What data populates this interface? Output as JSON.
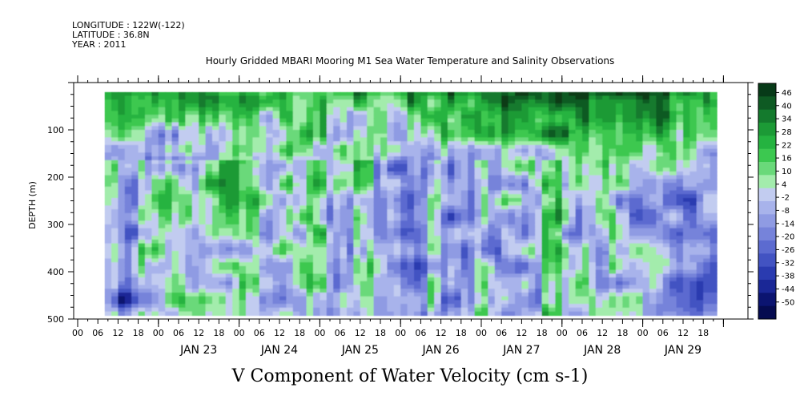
{
  "header": {
    "longitude": "LONGITUDE : 122W(-122)",
    "latitude": "LATITUDE : 36.8N",
    "year": "YEAR : 2011"
  },
  "chart_data": {
    "type": "heatmap",
    "title": "Hourly Gridded MBARI Mooring M1 Sea Water Temperature and Salinity Observations",
    "xlabel": "V Component of Water Velocity (cm s-1)",
    "ylabel": "DEPTH (m)",
    "ylim": [
      500,
      0
    ],
    "y_ticks": [
      "100",
      "200",
      "300",
      "400",
      "500"
    ],
    "x_hour_ticks": [
      "00",
      "06",
      "12",
      "18",
      "00",
      "06",
      "12",
      "18",
      "00",
      "06",
      "12",
      "18",
      "00",
      "06",
      "12",
      "18",
      "00",
      "06",
      "12",
      "18",
      "00",
      "06",
      "12",
      "18",
      "00",
      "06",
      "12",
      "18",
      "00",
      "06",
      "12",
      "18"
    ],
    "x_day_labels": [
      "JAN 23",
      "JAN 24",
      "JAN 25",
      "JAN 26",
      "JAN 27",
      "JAN 28",
      "JAN 29"
    ],
    "colorbar_labels": [
      "46",
      "40",
      "34",
      "28",
      "22",
      "16",
      "10",
      "4",
      "-2",
      "-8",
      "-14",
      "-20",
      "-26",
      "-32",
      "-38",
      "-44",
      "-50"
    ],
    "colorbar_colors": [
      "#073a18",
      "#0e5a23",
      "#147a2d",
      "#1c9a36",
      "#25b340",
      "#3cc850",
      "#6ad97a",
      "#a3ecac",
      "#c2ccf0",
      "#a8b3eb",
      "#8f9be3",
      "#7683da",
      "#5c6bd0",
      "#4253c2",
      "#2a3bb0",
      "#1a2796",
      "#0b1470",
      "#050b50"
    ],
    "grid": false,
    "legend": "right",
    "x_start": "JAN 22 12:00",
    "x_end": "JAN 29 21:00",
    "depth_range": [
      20,
      485
    ],
    "note_values": "approximate field of north-south velocity, cm/s"
  }
}
